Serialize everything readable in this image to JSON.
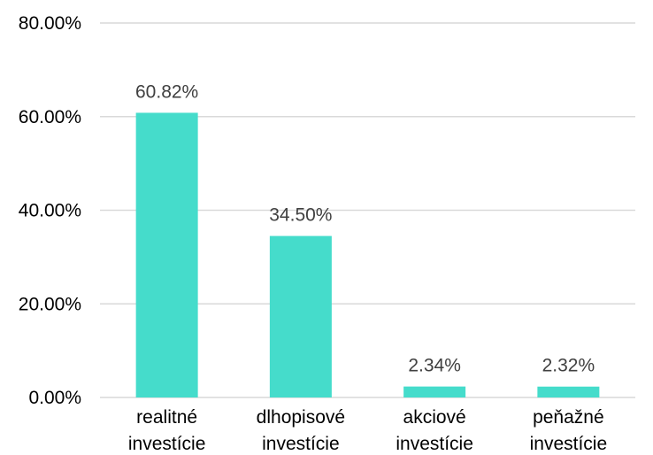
{
  "chart_data": {
    "type": "bar",
    "categories": [
      [
        "realitné",
        "investície"
      ],
      [
        "dlhopisové",
        "investície"
      ],
      [
        "akciové",
        "investície"
      ],
      [
        "peňažné",
        "investície"
      ]
    ],
    "values": [
      60.82,
      34.5,
      2.34,
      2.32
    ],
    "data_labels": [
      "60.82%",
      "34.50%",
      "2.34%",
      "2.32%"
    ],
    "y_ticks": [
      {
        "value": 0,
        "label": "0.00%"
      },
      {
        "value": 20,
        "label": "20.00%"
      },
      {
        "value": 40,
        "label": "40.00%"
      },
      {
        "value": 60,
        "label": "60.00%"
      },
      {
        "value": 80,
        "label": "80.00%"
      }
    ],
    "ylim": [
      0,
      80
    ],
    "title": "",
    "xlabel": "",
    "ylabel": "",
    "grid": true,
    "legend": "none",
    "bar_color": "#45dccb",
    "grid_color": "#d9d9d9"
  }
}
